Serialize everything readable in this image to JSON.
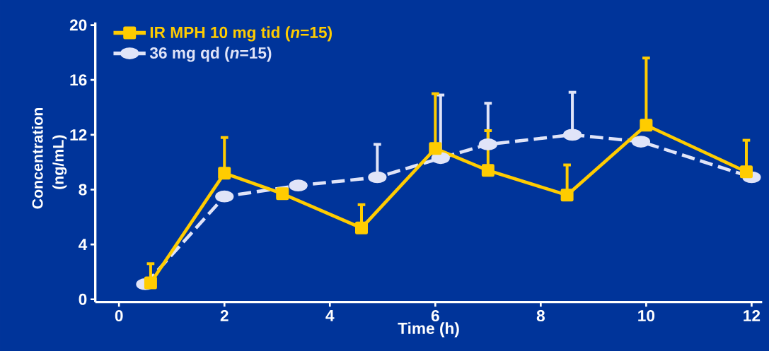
{
  "chart_data": {
    "type": "line",
    "xlabel": "Time (h)",
    "ylabel": "Concentration (ng/mL)",
    "xlim": [
      -0.45,
      12.2
    ],
    "ylim": [
      -0.2,
      20.2
    ],
    "xticks": [
      0,
      2,
      4,
      6,
      8,
      10,
      12
    ],
    "yticks": [
      0,
      4,
      8,
      12,
      16,
      20
    ],
    "legend": "top left",
    "grid": false,
    "series": [
      {
        "name": "IR MPH 10 mg tid (*n*=15)",
        "color": "#ffcc00",
        "marker": "square",
        "line_style": "solid",
        "x": [
          0.6,
          2.0,
          3.1,
          4.6,
          6.0,
          7.0,
          8.5,
          10.0,
          11.9
        ],
        "values": [
          1.2,
          9.2,
          7.7,
          5.2,
          11.0,
          9.4,
          7.6,
          12.7,
          9.3
        ],
        "errors": [
          [
            1.2,
            2.6
          ],
          [
            9.2,
            11.8
          ],
          null,
          [
            5.2,
            6.9
          ],
          [
            11.0,
            15.0
          ],
          [
            9.4,
            12.3
          ],
          [
            7.6,
            9.8
          ],
          [
            12.7,
            17.6
          ],
          [
            9.3,
            11.6
          ]
        ]
      },
      {
        "name": "36 mg qd (*n*=15)",
        "color": "#e0e4f8",
        "marker": "circle",
        "line_style": "dashed",
        "x": [
          0.5,
          2.0,
          3.4,
          4.9,
          6.1,
          7.0,
          8.6,
          9.9,
          12.0
        ],
        "values": [
          1.1,
          7.5,
          8.3,
          8.9,
          10.3,
          11.3,
          12.0,
          11.5,
          8.9
        ],
        "errors": [
          null,
          null,
          null,
          [
            8.9,
            11.3
          ],
          [
            10.3,
            14.9
          ],
          [
            11.3,
            14.3
          ],
          [
            12.0,
            15.1
          ],
          null,
          null
        ]
      }
    ]
  }
}
